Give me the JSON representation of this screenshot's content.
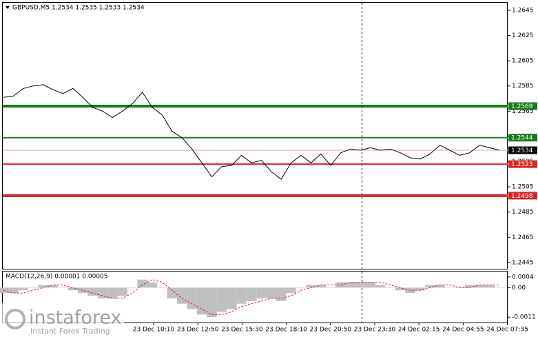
{
  "chart_data": {
    "type": "line",
    "title": "GBPUSD,M5  1.2534 1.2535 1.2533 1.2534",
    "color": "#000000",
    "values": [
      1.2576,
      1.2577,
      1.2583,
      1.2585,
      1.2586,
      1.2582,
      1.2579,
      1.2583,
      1.2576,
      1.2568,
      1.2565,
      1.256,
      1.2565,
      1.2571,
      1.258,
      1.2568,
      1.2562,
      1.2549,
      1.2544,
      1.2535,
      1.2524,
      1.2513,
      1.2521,
      1.2522,
      1.253,
      1.2524,
      1.2526,
      1.2517,
      1.2511,
      1.2524,
      1.253,
      1.2524,
      1.2531,
      1.2522,
      1.2532,
      1.2535,
      1.2534,
      1.2536,
      1.2534,
      1.2535,
      1.2532,
      1.2528,
      1.2527,
      1.2531,
      1.2538,
      1.2534,
      1.253,
      1.2532,
      1.2538,
      1.2536,
      1.2534
    ],
    "ylim": [
      1.244,
      1.2651
    ],
    "yticks": [
      1.2645,
      1.2625,
      1.2605,
      1.2585,
      1.2565,
      1.2545,
      1.2525,
      1.2505,
      1.2485,
      1.2465,
      1.2445
    ],
    "time_labels": [
      "23 Dec 10:10",
      "23 Dec 12:50",
      "23 Dec 15:30",
      "23 Dec 18:10",
      "23 Dec 20:50",
      "23 Dec 23:30",
      "24 Dec 02:15",
      "24 Dec 04:55",
      "24 Dec 07:35"
    ],
    "levels": [
      {
        "value": 1.2569,
        "color": "#1a7a1a",
        "width": 4
      },
      {
        "value": 1.2544,
        "color": "#1a7a1a",
        "width": 2
      },
      {
        "value": 1.2523,
        "color": "#dd2222",
        "width": 2
      },
      {
        "value": 1.2498,
        "color": "#dd2222",
        "width": 4
      }
    ],
    "current": {
      "value": 1.2534,
      "color": "#000000"
    },
    "macd": {
      "label": "MACD(12,26,9) 0.00001 0.00005",
      "histogram_color": "#c0c0c0",
      "signal_color": "#dd2222",
      "ylim": [
        -0.0013,
        0.0006
      ],
      "yticks": [
        0.0004,
        {
          "value": 0,
          "label": "0.00"
        },
        -0.0011
      ],
      "histogram": [
        -0.0002,
        -0.0002,
        -0.0001,
        0.0,
        0.0001,
        0.0001,
        0.0,
        -0.0001,
        -0.0002,
        -0.0003,
        -0.0004,
        -0.0004,
        -0.0003,
        0.0,
        0.0003,
        0.0002,
        0.0,
        -0.0004,
        -0.0006,
        -0.0008,
        -0.001,
        -0.0011,
        -0.0009,
        -0.0008,
        -0.0006,
        -0.0005,
        -0.0004,
        -0.0004,
        -0.0005,
        -0.0002,
        0.0,
        0.0001,
        0.0001,
        0.0,
        0.0002,
        0.0002,
        0.0002,
        0.0002,
        0.0001,
        0.0,
        -0.0001,
        -0.0002,
        -0.0001,
        0.0001,
        0.0001,
        0.0,
        0.0,
        0.0001,
        0.0001,
        0.0001,
        0.0
      ],
      "signal": [
        -0.0001,
        -0.0002,
        -0.0002,
        -0.0001,
        0.0,
        0.0001,
        0.0001,
        0.0,
        -0.0001,
        -0.0002,
        -0.0003,
        -0.0004,
        -0.0004,
        -0.0002,
        0.0001,
        0.0003,
        0.0002,
        -0.0001,
        -0.0004,
        -0.0006,
        -0.0008,
        -0.001,
        -0.001,
        -0.0009,
        -0.0007,
        -0.0006,
        -0.0005,
        -0.0004,
        -0.0004,
        -0.0003,
        -0.0001,
        0.0,
        0.0001,
        0.0001,
        0.0001,
        0.0002,
        0.0002,
        0.0002,
        0.0002,
        0.0001,
        0.0,
        -0.0001,
        -0.0001,
        0.0,
        0.0001,
        0.0001,
        0.0,
        0.0,
        0.0001,
        0.0001,
        0.0001
      ]
    },
    "watermark": {
      "brand": "instaforex",
      "tagline": "Instant Forex Trading"
    }
  }
}
